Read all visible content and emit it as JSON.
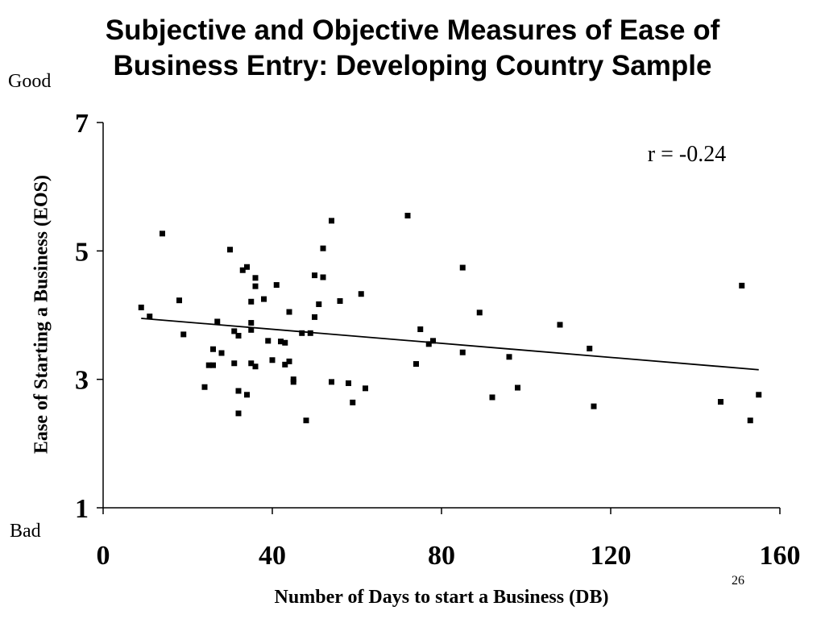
{
  "slide": {
    "title_line1": "Subjective and Objective Measures of Ease of",
    "title_line2": "Business Entry:  Developing Country Sample",
    "good_label": "Good",
    "bad_label": "Bad",
    "page_number": "26"
  },
  "chart_data": {
    "type": "scatter",
    "title": "Subjective and Objective Measures of Ease of Business Entry:  Developing Country Sample",
    "xlabel": "Number of Days to start a Business (DB)",
    "ylabel": "Ease of Starting a Business (EOS)",
    "xlim": [
      0,
      160
    ],
    "ylim": [
      1,
      7
    ],
    "xticks": [
      0,
      40,
      80,
      120,
      160
    ],
    "yticks": [
      1,
      3,
      5,
      7
    ],
    "grid": false,
    "annotation": "r = -0.24",
    "trendline": {
      "x": [
        9,
        155
      ],
      "y": [
        3.95,
        3.15
      ]
    },
    "marker_color": "#000000",
    "points": [
      [
        9,
        4.12
      ],
      [
        11,
        3.98
      ],
      [
        14,
        5.27
      ],
      [
        18,
        4.23
      ],
      [
        19,
        3.7
      ],
      [
        24,
        2.88
      ],
      [
        25,
        3.22
      ],
      [
        26,
        3.47
      ],
      [
        26,
        3.22
      ],
      [
        27,
        3.9
      ],
      [
        28,
        3.41
      ],
      [
        30,
        5.02
      ],
      [
        31,
        3.75
      ],
      [
        31,
        3.25
      ],
      [
        32,
        3.68
      ],
      [
        32,
        2.82
      ],
      [
        32,
        2.47
      ],
      [
        33,
        4.7
      ],
      [
        34,
        4.75
      ],
      [
        34,
        2.76
      ],
      [
        35,
        4.21
      ],
      [
        35,
        3.88
      ],
      [
        35,
        3.77
      ],
      [
        35,
        3.25
      ],
      [
        36,
        4.58
      ],
      [
        36,
        4.45
      ],
      [
        36,
        3.2
      ],
      [
        38,
        4.25
      ],
      [
        39,
        3.6
      ],
      [
        40,
        3.3
      ],
      [
        41,
        4.47
      ],
      [
        42,
        3.59
      ],
      [
        43,
        3.57
      ],
      [
        43,
        3.23
      ],
      [
        44,
        4.05
      ],
      [
        44,
        3.28
      ],
      [
        45,
        3.0
      ],
      [
        45,
        2.96
      ],
      [
        47,
        3.72
      ],
      [
        48,
        2.36
      ],
      [
        49,
        3.72
      ],
      [
        50,
        4.62
      ],
      [
        50,
        3.97
      ],
      [
        51,
        4.17
      ],
      [
        52,
        5.04
      ],
      [
        52,
        4.59
      ],
      [
        54,
        5.47
      ],
      [
        54,
        2.96
      ],
      [
        56,
        4.22
      ],
      [
        58,
        2.94
      ],
      [
        59,
        2.64
      ],
      [
        61,
        4.33
      ],
      [
        62,
        2.86
      ],
      [
        72,
        5.55
      ],
      [
        74,
        3.24
      ],
      [
        75,
        3.78
      ],
      [
        77,
        3.55
      ],
      [
        78,
        3.6
      ],
      [
        85,
        4.74
      ],
      [
        85,
        3.42
      ],
      [
        89,
        4.04
      ],
      [
        92,
        2.72
      ],
      [
        96,
        3.35
      ],
      [
        98,
        2.87
      ],
      [
        108,
        3.85
      ],
      [
        115,
        3.48
      ],
      [
        116,
        2.58
      ],
      [
        146,
        2.65
      ],
      [
        151,
        4.46
      ],
      [
        153,
        2.36
      ],
      [
        155,
        2.76
      ]
    ]
  }
}
